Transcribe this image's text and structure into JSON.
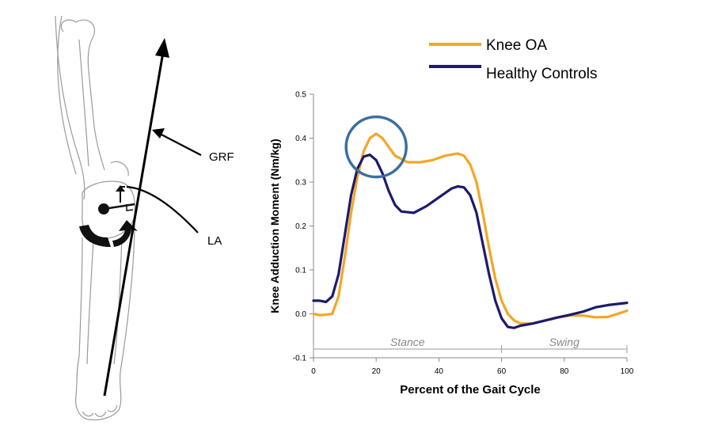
{
  "diagram": {
    "grf_label": "GRF",
    "la_label": "LA"
  },
  "legend": [
    {
      "label": "Knee OA",
      "color": "#F5A623"
    },
    {
      "label": "Healthy Controls",
      "color": "#1C1A6E"
    }
  ],
  "highlight_color": "#3B6EA0",
  "chart_data": {
    "type": "line",
    "xlabel": "Percent of the Gait Cycle",
    "ylabel": "Knee Adduction Moment (Nm/kg)",
    "xlim": [
      0,
      100
    ],
    "ylim": [
      -0.1,
      0.5
    ],
    "xticks": [
      0,
      20,
      40,
      60,
      80,
      100
    ],
    "yticks": [
      -0.1,
      0.0,
      0.1,
      0.2,
      0.3,
      0.4,
      0.5
    ],
    "ytick_labels": [
      "-0.1",
      "0.0",
      "0.1",
      "0.2",
      "0.3",
      "0.4",
      "0.5"
    ],
    "phases": [
      {
        "label": "Stance",
        "start": 0,
        "end": 60
      },
      {
        "label": "Swing",
        "start": 60,
        "end": 100
      }
    ],
    "highlight": {
      "x": 20,
      "y": 0.38
    },
    "series": [
      {
        "name": "Knee OA",
        "color": "#F5A623",
        "points": [
          [
            0,
            0.0
          ],
          [
            2,
            -0.003
          ],
          [
            4,
            -0.002
          ],
          [
            6,
            0.0
          ],
          [
            8,
            0.04
          ],
          [
            10,
            0.13
          ],
          [
            12,
            0.23
          ],
          [
            14,
            0.31
          ],
          [
            16,
            0.37
          ],
          [
            18,
            0.4
          ],
          [
            20,
            0.41
          ],
          [
            22,
            0.4
          ],
          [
            24,
            0.38
          ],
          [
            26,
            0.36
          ],
          [
            30,
            0.345
          ],
          [
            34,
            0.345
          ],
          [
            38,
            0.35
          ],
          [
            42,
            0.36
          ],
          [
            46,
            0.365
          ],
          [
            48,
            0.36
          ],
          [
            50,
            0.34
          ],
          [
            52,
            0.3
          ],
          [
            54,
            0.23
          ],
          [
            56,
            0.15
          ],
          [
            58,
            0.08
          ],
          [
            60,
            0.03
          ],
          [
            62,
            0.0
          ],
          [
            64,
            -0.015
          ],
          [
            66,
            -0.022
          ],
          [
            70,
            -0.022
          ],
          [
            74,
            -0.015
          ],
          [
            78,
            -0.008
          ],
          [
            82,
            -0.004
          ],
          [
            86,
            -0.004
          ],
          [
            90,
            -0.008
          ],
          [
            94,
            -0.007
          ],
          [
            97,
            0.0
          ],
          [
            100,
            0.007
          ]
        ]
      },
      {
        "name": "Healthy Controls",
        "color": "#1C1A6E",
        "points": [
          [
            0,
            0.03
          ],
          [
            2,
            0.03
          ],
          [
            4,
            0.027
          ],
          [
            6,
            0.04
          ],
          [
            8,
            0.09
          ],
          [
            10,
            0.18
          ],
          [
            12,
            0.27
          ],
          [
            14,
            0.33
          ],
          [
            16,
            0.358
          ],
          [
            18,
            0.362
          ],
          [
            20,
            0.35
          ],
          [
            22,
            0.32
          ],
          [
            24,
            0.28
          ],
          [
            26,
            0.248
          ],
          [
            28,
            0.233
          ],
          [
            32,
            0.23
          ],
          [
            36,
            0.245
          ],
          [
            40,
            0.265
          ],
          [
            44,
            0.285
          ],
          [
            46,
            0.29
          ],
          [
            48,
            0.288
          ],
          [
            50,
            0.27
          ],
          [
            52,
            0.23
          ],
          [
            54,
            0.16
          ],
          [
            56,
            0.09
          ],
          [
            58,
            0.03
          ],
          [
            60,
            -0.01
          ],
          [
            62,
            -0.03
          ],
          [
            64,
            -0.032
          ],
          [
            66,
            -0.027
          ],
          [
            70,
            -0.022
          ],
          [
            74,
            -0.015
          ],
          [
            78,
            -0.008
          ],
          [
            82,
            -0.002
          ],
          [
            86,
            0.005
          ],
          [
            90,
            0.015
          ],
          [
            94,
            0.02
          ],
          [
            100,
            0.025
          ]
        ]
      }
    ]
  }
}
